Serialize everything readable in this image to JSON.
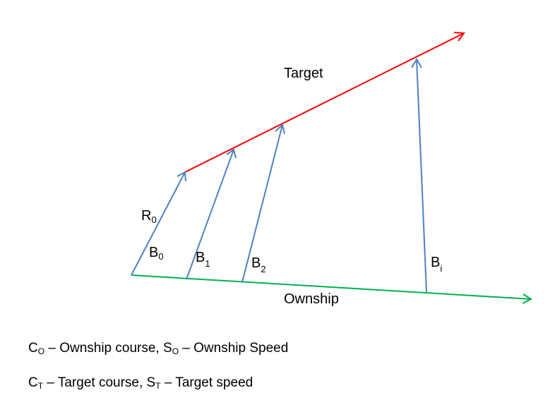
{
  "labels": {
    "target": "Target",
    "ownship": "Ownship",
    "r0_main": "R",
    "r0_sub": "0",
    "b0_main": "B",
    "b0_sub": "0",
    "b1_main": "B",
    "b1_sub": "1",
    "b2_main": "B",
    "b2_sub": "2",
    "bi_main": "B",
    "bi_sub": "i"
  },
  "legend": {
    "line1": {
      "c": "C",
      "c_sub": "O",
      "c_text": " – Ownship course, ",
      "s": "S",
      "s_sub": "O",
      "s_text": " – Ownship Speed"
    },
    "line2": {
      "c": "C",
      "c_sub": "T",
      "c_text": " – Target course, ",
      "s": "S",
      "s_sub": "T",
      "s_text": " – Target speed"
    }
  },
  "colors": {
    "target_track": "#ff0000",
    "ownship_track": "#00b050",
    "bearing_lines": "#4f81bd"
  }
}
